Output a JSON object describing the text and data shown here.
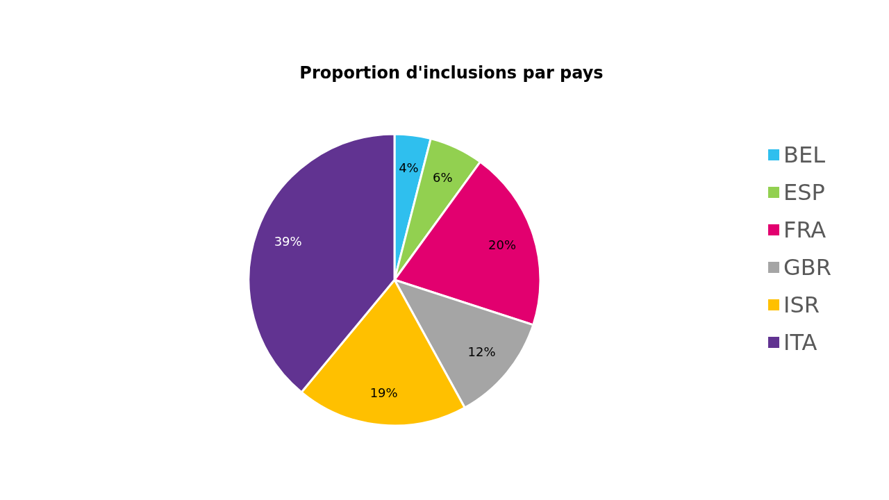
{
  "chart_data": {
    "type": "pie",
    "title": "Proportion d'inclusions par pays",
    "categories": [
      "BEL",
      "ESP",
      "FRA",
      "GBR",
      "ISR",
      "ITA"
    ],
    "values": [
      4,
      6,
      20,
      12,
      19,
      39
    ],
    "value_labels": [
      "4%",
      "6%",
      "20%",
      "12%",
      "19%",
      "39%"
    ],
    "colors": [
      "#2fbfee",
      "#92d050",
      "#e2006f",
      "#a5a5a5",
      "#ffc000",
      "#613391"
    ],
    "legend": "right"
  }
}
